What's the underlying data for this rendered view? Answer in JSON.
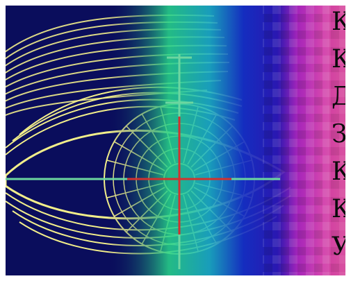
{
  "image": {
    "subject": "eye-scan-icon",
    "colors": {
      "background_dark": "#0a0d5c",
      "etching": "#f2ee8a",
      "crosshair_green": "#6cd6a0",
      "crosshair_red": "#d2322e",
      "band_green": "#2fe08c",
      "band_blue": "#1530c8",
      "band_magenta": "#d63cc0",
      "band_pink": "#f06fb5"
    }
  },
  "text_column": {
    "letters": [
      "К",
      "К",
      "Д",
      "З",
      "К",
      "К",
      "У"
    ]
  }
}
